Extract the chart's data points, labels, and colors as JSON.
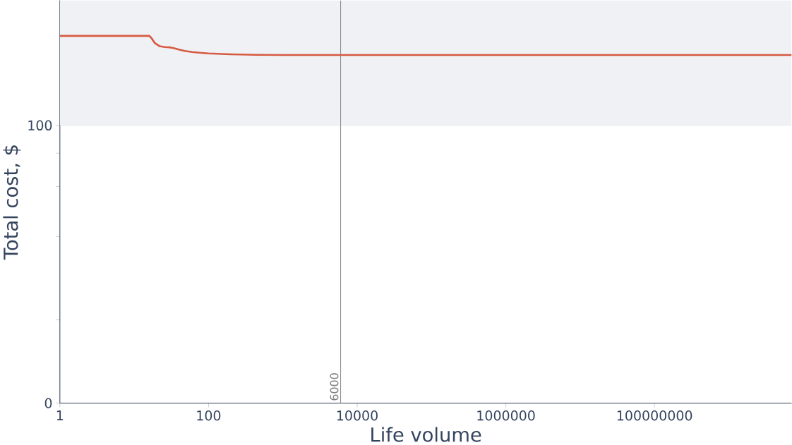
{
  "chart_data": {
    "type": "line",
    "xlabel": "Life volume",
    "ylabel": "Total cost, $",
    "log": "x",
    "x": [
      1,
      16,
      17,
      19,
      22,
      26,
      30,
      34,
      40,
      48,
      60,
      80,
      100,
      200,
      427,
      1000,
      6000,
      100000,
      10000000,
      1000000000,
      7000000000
    ],
    "series": [
      {
        "color": "#d65a40",
        "values": [
          132.2,
          132.2,
          131.5,
          129.6,
          128.5,
          128.2,
          128.1,
          127.8,
          127.3,
          126.8,
          126.4,
          126.1,
          125.9,
          125.6,
          125.4,
          125.3,
          125.3,
          125.3,
          125.3,
          125.3,
          125.3
        ]
      }
    ],
    "xlim": [
      1,
      7000000000
    ],
    "ylim": [
      0,
      145
    ],
    "xticks": [
      1,
      100,
      10000,
      1000000,
      100000000
    ],
    "yticks": [
      0,
      {
        "value": 30,
        "label": null
      },
      {
        "value": 60,
        "label": null
      },
      {
        "value": 78,
        "label": null
      },
      {
        "value": 90,
        "label": null
      },
      100
    ],
    "bands": [
      {
        "axis": "y",
        "from": 100,
        "to": 145,
        "color": "#f0f1f5"
      }
    ],
    "ref_lines": [
      {
        "axis": "x",
        "value": 6000,
        "label": "6000",
        "color": "#808080"
      }
    ],
    "marker": "none",
    "line_style": "solid"
  }
}
